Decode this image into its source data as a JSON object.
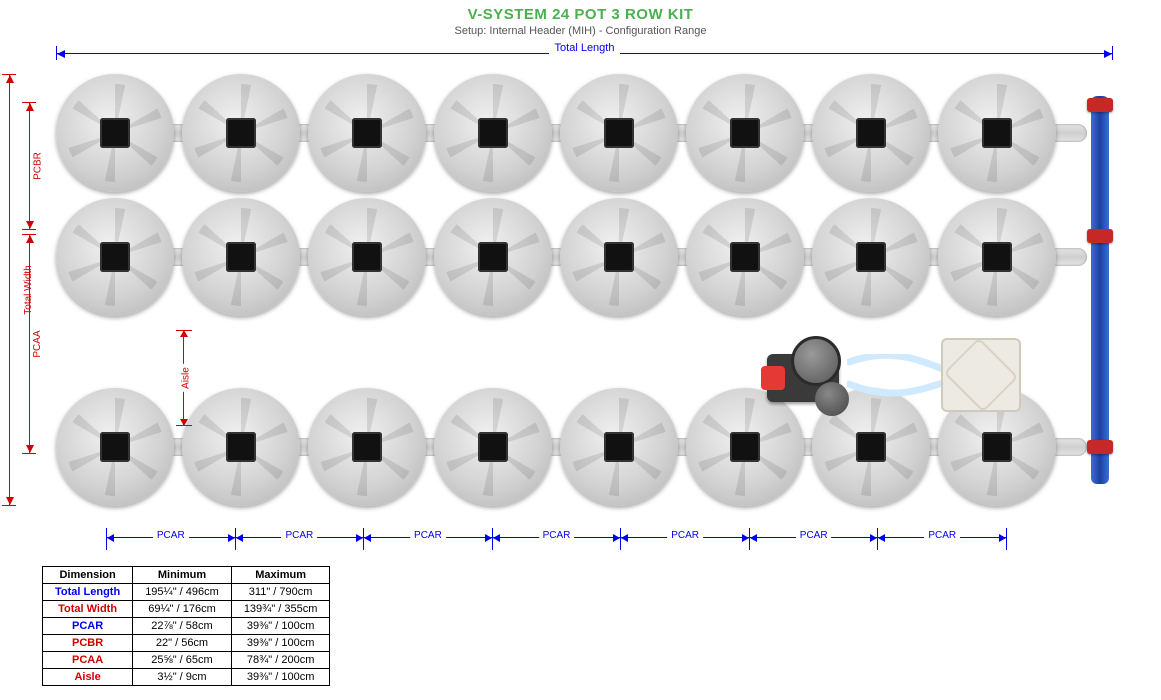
{
  "title": {
    "main": "V-SYSTEM 24 POT 3 ROW KIT",
    "sub": "Setup: Internal Header (MIH) - Configuration Range"
  },
  "layout": {
    "pots_per_row": 8,
    "rows": 3,
    "pcar_spans": 7,
    "aspect": "top-down plan",
    "colors": {
      "pot_light": "#f0f0f0",
      "pot_dark": "#b0b0b0",
      "pot_center": "#111111",
      "pipe": "#d6d6d6",
      "manifold": "#1c3fa0",
      "manifold_light": "#3b6fd8",
      "valve": "#c62828",
      "pump_body": "#3a3a3a",
      "pump_knob": "#e53935",
      "reservoir": "#eceae3",
      "dim_blue": "#0000ee",
      "dim_red": "#d00000",
      "title": "#4caf50",
      "subtitle": "#555555",
      "background": "#ffffff"
    }
  },
  "dimensions": {
    "total_length_label": "Total Length",
    "total_width_label": "Total Width",
    "pcbr_label": "PCBR",
    "pcaa_label": "PCAA",
    "pcar_label": "PCAR",
    "aisle_label": "Aisle"
  },
  "table": {
    "headers": [
      "Dimension",
      "Minimum",
      "Maximum"
    ],
    "rows": [
      {
        "name": "Total Length",
        "min": "195¼\" / 496cm",
        "max": "311\" / 790cm",
        "style": "blue"
      },
      {
        "name": "Total Width",
        "min": "69¼\" / 176cm",
        "max": "139¾\" / 355cm",
        "style": "red"
      },
      {
        "name": "PCAR",
        "min": "22⅞\" / 58cm",
        "max": "39⅜\" / 100cm",
        "style": "blue"
      },
      {
        "name": "PCBR",
        "min": "22\" / 56cm",
        "max": "39⅜\" / 100cm",
        "style": "red"
      },
      {
        "name": "PCAA",
        "min": "25⅝\" / 65cm",
        "max": "78¾\" / 200cm",
        "style": "red"
      },
      {
        "name": "Aisle",
        "min": "3½\" / 9cm",
        "max": "39⅜\" / 100cm",
        "style": "red"
      }
    ]
  }
}
